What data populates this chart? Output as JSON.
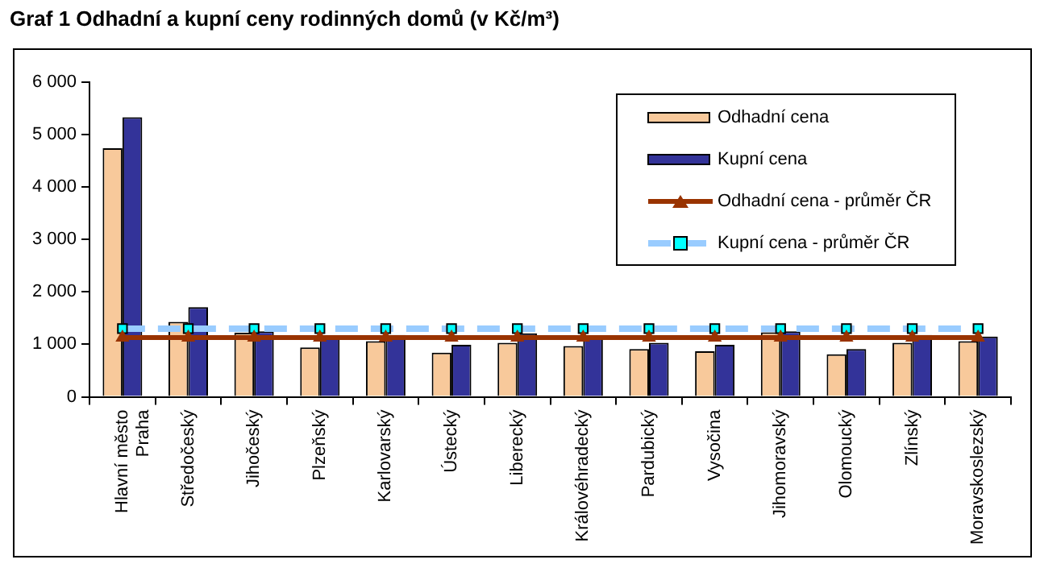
{
  "chart_data": {
    "type": "bar",
    "title": "Graf 1 Odhadní a kupní ceny rodinných domů (v Kč/m³)",
    "categories": [
      "Hlavní město Praha",
      "Středočeský",
      "Jihočeský",
      "Plzeňský",
      "Karlovarský",
      "Ústecký",
      "Liberecký",
      "Královéhradecký",
      "Pardubický",
      "Vysočina",
      "Jihomoravský",
      "Olomoucký",
      "Zlínský",
      "Moravskoslezský"
    ],
    "series": [
      {
        "name": "Odhadní cena",
        "color": "#f8c99b",
        "values": [
          4740,
          1430,
          1220,
          940,
          1060,
          840,
          1030,
          970,
          910,
          870,
          1230,
          810,
          1030,
          1060
        ]
      },
      {
        "name": "Kupní cena",
        "color": "#333399",
        "values": [
          5330,
          1710,
          1250,
          1150,
          1180,
          990,
          1210,
          1170,
          1030,
          990,
          1250,
          910,
          1180,
          1150
        ]
      },
      {
        "name": "Odhadní cena - průměr ČR",
        "type": "line",
        "color": "#993300",
        "marker": "triangle",
        "line_style": "solid",
        "values": [
          1130,
          1130,
          1130,
          1130,
          1130,
          1130,
          1130,
          1130,
          1130,
          1130,
          1130,
          1130,
          1130,
          1130
        ]
      },
      {
        "name": "Kupní cena - průměr ČR",
        "type": "line",
        "color": "#99ccff",
        "marker": "square",
        "line_style": "dashed",
        "values": [
          1300,
          1300,
          1300,
          1300,
          1300,
          1300,
          1300,
          1300,
          1300,
          1300,
          1300,
          1300,
          1300,
          1300
        ]
      }
    ],
    "ylim": [
      0,
      6000
    ],
    "yticks": [
      0,
      {
        "value": 1000,
        "label": "1 000"
      },
      {
        "value": 2000,
        "label": "2 000"
      },
      {
        "value": 3000,
        "label": "3 000"
      },
      {
        "value": 4000,
        "label": "4 000"
      },
      {
        "value": 5000,
        "label": "5 000"
      },
      {
        "value": 6000,
        "label": "6 000"
      }
    ],
    "grid": false,
    "legend": "top right"
  }
}
